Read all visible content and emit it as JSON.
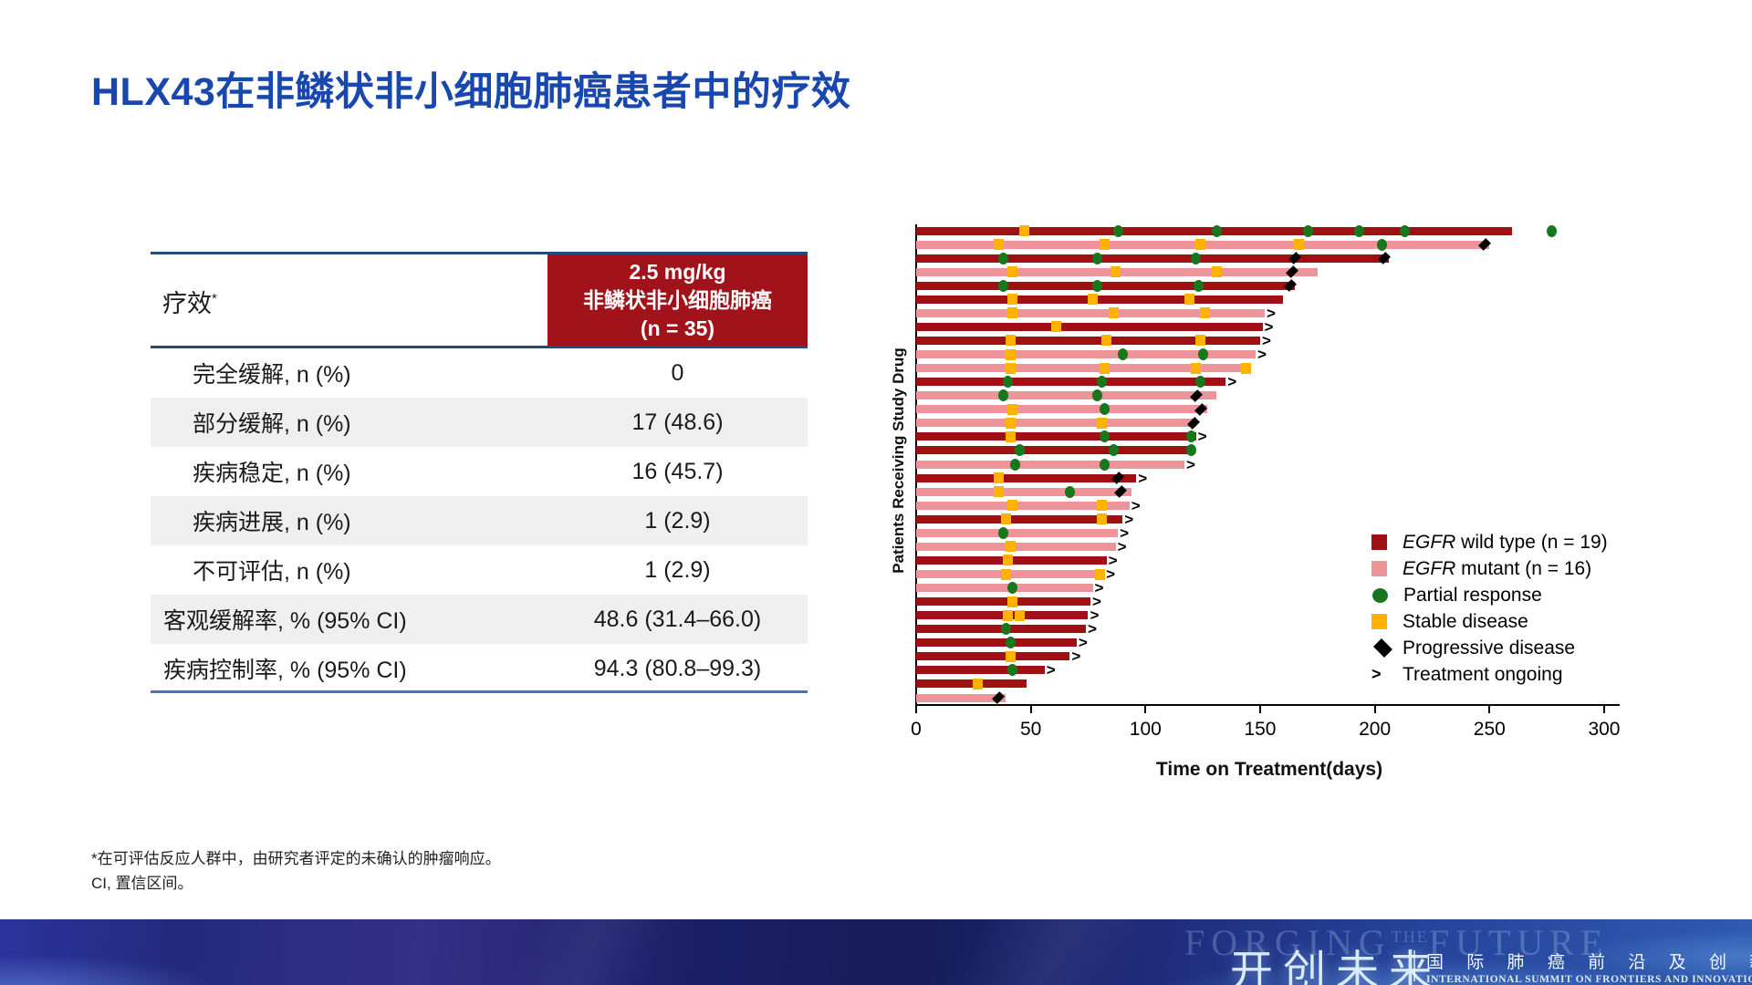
{
  "slide": {
    "title": "HLX43在非鳞状非小细胞肺癌患者中的疗效"
  },
  "table": {
    "col_label": "疗效",
    "col_label_sup": "*",
    "header_lines": [
      "2.5 mg/kg",
      "非鳞状非小细胞肺癌",
      "(n = 35)"
    ],
    "rows": [
      {
        "label": "完全缓解, n (%)",
        "value": "0",
        "indent": 1,
        "shaded": false
      },
      {
        "label": "部分缓解, n (%)",
        "value": "17 (48.6)",
        "indent": 1,
        "shaded": true
      },
      {
        "label": "疾病稳定, n (%)",
        "value": "16 (45.7)",
        "indent": 1,
        "shaded": false
      },
      {
        "label": "疾病进展, n (%)",
        "value": "1 (2.9)",
        "indent": 1,
        "shaded": true
      },
      {
        "label": "不可评估, n (%)",
        "value": "1 (2.9)",
        "indent": 1,
        "shaded": false
      },
      {
        "label": "客观缓解率, % (95% CI)",
        "value": "48.6 (31.4–66.0)",
        "indent": 0,
        "shaded": true
      },
      {
        "label": "疾病控制率, % (95% CI)",
        "value": "94.3 (80.8–99.3)",
        "indent": 0,
        "shaded": false
      }
    ]
  },
  "chart_data": {
    "type": "bar",
    "subtype": "swimmer",
    "x_axis_label": "Time on Treatment(days)",
    "y_axis_label": "Patients Receiving Study Drug",
    "x_ticks": [
      0,
      50,
      100,
      150,
      200,
      250,
      300
    ],
    "x_range": [
      0,
      300
    ],
    "grid": false,
    "legend_position": "right-bottom",
    "colors": {
      "egfr_wild": "#A00F14",
      "egfr_mutant": "#EF939A",
      "partial_response": "#17771C",
      "stable_disease": "#FFB300",
      "progressive_disease": "#000000"
    },
    "legend": [
      {
        "swatch": "wild",
        "prefix_italic": "EGFR",
        "text": " wild type (n = 19)"
      },
      {
        "swatch": "mutant",
        "prefix_italic": "EGFR",
        "text": " mutant (n = 16)"
      },
      {
        "swatch": "circle",
        "prefix_italic": "",
        "text": "Partial response"
      },
      {
        "swatch": "square",
        "prefix_italic": "",
        "text": "Stable disease"
      },
      {
        "swatch": "diamond",
        "prefix_italic": "",
        "text": "Progressive disease"
      },
      {
        "swatch": "arrow",
        "prefix_italic": "",
        "text": "Treatment ongoing"
      }
    ],
    "bars": [
      {
        "group": "wild",
        "end": 260,
        "sd": [
          47
        ],
        "pr": [
          88,
          131,
          171,
          193,
          213,
          277
        ],
        "pd": [],
        "ongoing": false
      },
      {
        "group": "mutant",
        "end": 250,
        "sd": [
          36,
          82,
          124,
          167
        ],
        "pr": [
          203
        ],
        "pd": [
          248
        ],
        "ongoing": false
      },
      {
        "group": "wild",
        "end": 206,
        "sd": [],
        "pr": [
          38,
          79,
          122
        ],
        "pd": [
          165,
          204
        ],
        "ongoing": false
      },
      {
        "group": "mutant",
        "end": 175,
        "sd": [
          42,
          87,
          131
        ],
        "pr": [],
        "pd": [
          164
        ],
        "ongoing": false
      },
      {
        "group": "wild",
        "end": 165,
        "sd": [],
        "pr": [
          38,
          79,
          123
        ],
        "pd": [
          163
        ],
        "ongoing": false
      },
      {
        "group": "wild",
        "end": 160,
        "sd": [
          42,
          77,
          119
        ],
        "pr": [],
        "pd": [],
        "ongoing": false
      },
      {
        "group": "mutant",
        "end": 152,
        "sd": [
          42,
          86,
          126
        ],
        "pr": [],
        "pd": [],
        "ongoing": true
      },
      {
        "group": "wild",
        "end": 151,
        "sd": [
          61
        ],
        "pr": [],
        "pd": [],
        "ongoing": true
      },
      {
        "group": "wild",
        "end": 150,
        "sd": [
          41,
          83,
          124
        ],
        "pr": [],
        "pd": [],
        "ongoing": true
      },
      {
        "group": "mutant",
        "end": 148,
        "sd": [
          41
        ],
        "pr": [
          90,
          125
        ],
        "pd": [],
        "ongoing": true
      },
      {
        "group": "mutant",
        "end": 145,
        "sd": [
          41,
          82,
          122,
          144
        ],
        "pr": [],
        "pd": [],
        "ongoing": false
      },
      {
        "group": "wild",
        "end": 135,
        "sd": [],
        "pr": [
          40,
          81,
          124
        ],
        "pd": [],
        "ongoing": true
      },
      {
        "group": "mutant",
        "end": 131,
        "sd": [],
        "pr": [
          38,
          79
        ],
        "pd": [
          122
        ],
        "ongoing": false
      },
      {
        "group": "mutant",
        "end": 127,
        "sd": [
          42
        ],
        "pr": [
          82
        ],
        "pd": [
          124
        ],
        "ongoing": false
      },
      {
        "group": "mutant",
        "end": 122,
        "sd": [
          41,
          81
        ],
        "pr": [],
        "pd": [
          121
        ],
        "ongoing": false
      },
      {
        "group": "wild",
        "end": 122,
        "sd": [
          41
        ],
        "pr": [
          82,
          120
        ],
        "pd": [],
        "ongoing": true
      },
      {
        "group": "wild",
        "end": 121,
        "sd": [],
        "pr": [
          45,
          86,
          120
        ],
        "pd": [],
        "ongoing": false
      },
      {
        "group": "mutant",
        "end": 117,
        "sd": [],
        "pr": [
          43,
          82
        ],
        "pd": [],
        "ongoing": true
      },
      {
        "group": "wild",
        "end": 96,
        "sd": [
          36
        ],
        "pr": [],
        "pd": [
          88
        ],
        "ongoing": true
      },
      {
        "group": "mutant",
        "end": 94,
        "sd": [
          36
        ],
        "pr": [
          67
        ],
        "pd": [
          89
        ],
        "ongoing": false
      },
      {
        "group": "mutant",
        "end": 93,
        "sd": [
          42,
          81
        ],
        "pr": [],
        "pd": [],
        "ongoing": true
      },
      {
        "group": "wild",
        "end": 90,
        "sd": [
          39,
          81
        ],
        "pr": [],
        "pd": [],
        "ongoing": true
      },
      {
        "group": "mutant",
        "end": 88,
        "sd": [],
        "pr": [
          38
        ],
        "pd": [],
        "ongoing": true
      },
      {
        "group": "mutant",
        "end": 87,
        "sd": [
          41
        ],
        "pr": [],
        "pd": [],
        "ongoing": true
      },
      {
        "group": "wild",
        "end": 83,
        "sd": [
          40
        ],
        "pr": [],
        "pd": [],
        "ongoing": true
      },
      {
        "group": "mutant",
        "end": 82,
        "sd": [
          39,
          80
        ],
        "pr": [],
        "pd": [],
        "ongoing": true
      },
      {
        "group": "mutant",
        "end": 77,
        "sd": [],
        "pr": [
          42
        ],
        "pd": [],
        "ongoing": true
      },
      {
        "group": "wild",
        "end": 76,
        "sd": [
          42
        ],
        "pr": [],
        "pd": [],
        "ongoing": true
      },
      {
        "group": "wild",
        "end": 75,
        "sd": [
          40,
          45
        ],
        "pr": [],
        "pd": [],
        "ongoing": true
      },
      {
        "group": "wild",
        "end": 74,
        "sd": [],
        "pr": [
          39
        ],
        "pd": [],
        "ongoing": true
      },
      {
        "group": "wild",
        "end": 70,
        "sd": [],
        "pr": [
          41
        ],
        "pd": [],
        "ongoing": true
      },
      {
        "group": "wild",
        "end": 67,
        "sd": [
          41
        ],
        "pr": [],
        "pd": [],
        "ongoing": true
      },
      {
        "group": "wild",
        "end": 56,
        "sd": [],
        "pr": [
          42
        ],
        "pd": [],
        "ongoing": true
      },
      {
        "group": "wild",
        "end": 48,
        "sd": [
          27
        ],
        "pr": [],
        "pd": [],
        "ongoing": false
      },
      {
        "group": "mutant",
        "end": 39,
        "sd": [],
        "pr": [],
        "pd": [
          36
        ],
        "ongoing": false
      }
    ]
  },
  "footnotes": [
    "*在可评估反应人群中，由研究者评定的未确认的肿瘤响应。",
    "CI, 置信区间。"
  ],
  "banner": {
    "watermark_pre": "FORGING",
    "watermark_the": "THE",
    "watermark_post": "FUTURE",
    "brand_cn": "开创未来",
    "forum_cn": "国 际 肺 癌 前 沿 及 创 新 论 坛",
    "forum_en": "INTERNATIONAL SUMMIT ON FRONTIERS AND INNOVATIONS IN LUNG CANCER"
  }
}
